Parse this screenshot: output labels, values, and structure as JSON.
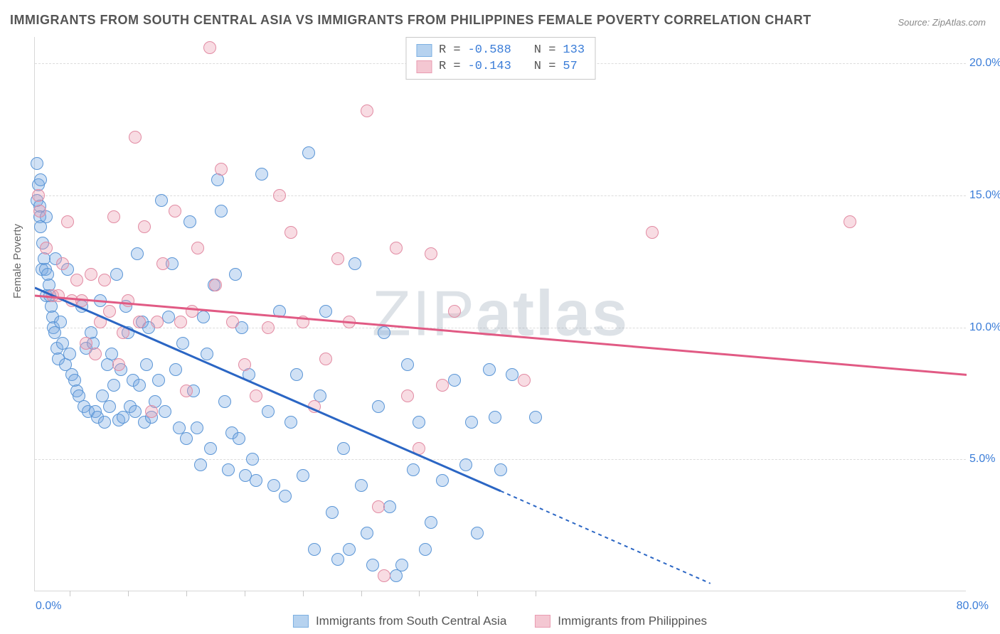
{
  "title": "IMMIGRANTS FROM SOUTH CENTRAL ASIA VS IMMIGRANTS FROM PHILIPPINES FEMALE POVERTY CORRELATION CHART",
  "source": "Source: ZipAtlas.com",
  "watermark_light": "ZIP",
  "watermark_bold": "atlas",
  "ylabel": "Female Poverty",
  "chart": {
    "type": "scatter",
    "xlim": [
      0,
      80
    ],
    "ylim": [
      0,
      21
    ],
    "yticks": [
      5,
      10,
      15,
      20
    ],
    "ytick_labels": [
      "5.0%",
      "10.0%",
      "15.0%",
      "20.0%"
    ],
    "x_left_label": "0.0%",
    "x_right_label": "80.0%",
    "xtick_positions": [
      3,
      8,
      13,
      18,
      23,
      28,
      33,
      38,
      43
    ],
    "background_color": "#ffffff",
    "grid_color": "#dcdcdc",
    "series": [
      {
        "name": "Immigrants from South Central Asia",
        "key": "south_central_asia",
        "fill": "rgba(120,170,225,0.35)",
        "stroke": "#5a95d6",
        "swatch_fill": "#b6d2ef",
        "swatch_border": "#7cb0e2",
        "line_color": "#2b66c4",
        "marker_radius": 9,
        "R": "-0.588",
        "N": "133",
        "trend": {
          "x1": 0,
          "y1": 11.5,
          "x2": 40,
          "y2": 3.8,
          "ext_x2": 58,
          "ext_y2": 0.3
        },
        "points": [
          [
            0.2,
            16.2
          ],
          [
            0.2,
            14.8
          ],
          [
            0.3,
            15.4
          ],
          [
            0.4,
            14.6
          ],
          [
            0.4,
            14.2
          ],
          [
            0.5,
            13.8
          ],
          [
            0.5,
            15.6
          ],
          [
            0.6,
            12.2
          ],
          [
            0.7,
            13.2
          ],
          [
            0.8,
            12.6
          ],
          [
            0.9,
            12.2
          ],
          [
            1.0,
            14.2
          ],
          [
            1.0,
            11.2
          ],
          [
            1.1,
            12.0
          ],
          [
            1.2,
            11.6
          ],
          [
            1.3,
            11.2
          ],
          [
            1.4,
            10.8
          ],
          [
            1.5,
            10.4
          ],
          [
            1.6,
            10.0
          ],
          [
            1.7,
            9.8
          ],
          [
            1.8,
            12.6
          ],
          [
            1.9,
            9.2
          ],
          [
            2.0,
            8.8
          ],
          [
            2.2,
            10.2
          ],
          [
            2.4,
            9.4
          ],
          [
            2.6,
            8.6
          ],
          [
            2.8,
            12.2
          ],
          [
            3.0,
            9.0
          ],
          [
            3.2,
            8.2
          ],
          [
            3.4,
            8.0
          ],
          [
            3.6,
            7.6
          ],
          [
            3.8,
            7.4
          ],
          [
            4.0,
            10.8
          ],
          [
            4.2,
            7.0
          ],
          [
            4.4,
            9.2
          ],
          [
            4.6,
            6.8
          ],
          [
            4.8,
            9.8
          ],
          [
            5.0,
            9.4
          ],
          [
            5.2,
            6.8
          ],
          [
            5.4,
            6.6
          ],
          [
            5.6,
            11.0
          ],
          [
            5.8,
            7.4
          ],
          [
            6.0,
            6.4
          ],
          [
            6.2,
            8.6
          ],
          [
            6.4,
            7.0
          ],
          [
            6.6,
            9.0
          ],
          [
            6.8,
            7.8
          ],
          [
            7.0,
            12.0
          ],
          [
            7.2,
            6.5
          ],
          [
            7.4,
            8.4
          ],
          [
            7.6,
            6.6
          ],
          [
            7.8,
            10.8
          ],
          [
            8.0,
            9.8
          ],
          [
            8.2,
            7.0
          ],
          [
            8.4,
            8.0
          ],
          [
            8.6,
            6.8
          ],
          [
            8.8,
            12.8
          ],
          [
            9.0,
            7.8
          ],
          [
            9.2,
            10.2
          ],
          [
            9.4,
            6.4
          ],
          [
            9.6,
            8.6
          ],
          [
            9.8,
            10.0
          ],
          [
            10.0,
            6.6
          ],
          [
            10.3,
            7.2
          ],
          [
            10.6,
            8.0
          ],
          [
            10.9,
            14.8
          ],
          [
            11.2,
            6.8
          ],
          [
            11.5,
            10.4
          ],
          [
            11.8,
            12.4
          ],
          [
            12.1,
            8.4
          ],
          [
            12.4,
            6.2
          ],
          [
            12.7,
            9.4
          ],
          [
            13.0,
            5.8
          ],
          [
            13.3,
            14.0
          ],
          [
            13.6,
            7.6
          ],
          [
            13.9,
            6.2
          ],
          [
            14.2,
            4.8
          ],
          [
            14.5,
            10.4
          ],
          [
            14.8,
            9.0
          ],
          [
            15.1,
            5.4
          ],
          [
            15.4,
            11.6
          ],
          [
            15.7,
            15.6
          ],
          [
            16.0,
            14.4
          ],
          [
            16.3,
            7.2
          ],
          [
            16.6,
            4.6
          ],
          [
            16.9,
            6.0
          ],
          [
            17.2,
            12.0
          ],
          [
            17.5,
            5.8
          ],
          [
            17.8,
            10.0
          ],
          [
            18.1,
            4.4
          ],
          [
            18.4,
            8.2
          ],
          [
            18.7,
            5.0
          ],
          [
            19.0,
            4.2
          ],
          [
            19.5,
            15.8
          ],
          [
            20.0,
            6.8
          ],
          [
            20.5,
            4.0
          ],
          [
            21.0,
            10.6
          ],
          [
            21.5,
            3.6
          ],
          [
            22.0,
            6.4
          ],
          [
            22.5,
            8.2
          ],
          [
            23.0,
            4.4
          ],
          [
            23.5,
            16.6
          ],
          [
            24.0,
            1.6
          ],
          [
            24.5,
            7.4
          ],
          [
            25.0,
            10.6
          ],
          [
            25.5,
            3.0
          ],
          [
            26.0,
            1.2
          ],
          [
            26.5,
            5.4
          ],
          [
            27.0,
            1.6
          ],
          [
            27.5,
            12.4
          ],
          [
            28.0,
            4.0
          ],
          [
            28.5,
            2.2
          ],
          [
            29.0,
            1.0
          ],
          [
            29.5,
            7.0
          ],
          [
            30.0,
            9.8
          ],
          [
            30.5,
            3.2
          ],
          [
            31.0,
            0.6
          ],
          [
            31.5,
            1.0
          ],
          [
            32.0,
            8.6
          ],
          [
            32.5,
            4.6
          ],
          [
            33.0,
            6.4
          ],
          [
            33.5,
            1.6
          ],
          [
            34.0,
            2.6
          ],
          [
            35.0,
            4.2
          ],
          [
            36.0,
            8.0
          ],
          [
            37.0,
            4.8
          ],
          [
            37.5,
            6.4
          ],
          [
            38.0,
            2.2
          ],
          [
            39.0,
            8.4
          ],
          [
            39.5,
            6.6
          ],
          [
            40.0,
            4.6
          ],
          [
            41.0,
            8.2
          ],
          [
            43.0,
            6.6
          ]
        ]
      },
      {
        "name": "Immigrants from Philippines",
        "key": "philippines",
        "fill": "rgba(235,155,175,0.35)",
        "stroke": "#e28ba3",
        "swatch_fill": "#f4c7d2",
        "swatch_border": "#e99cb2",
        "line_color": "#e15a84",
        "marker_radius": 9,
        "R": "-0.143",
        "N": "57",
        "trend": {
          "x1": 0,
          "y1": 11.2,
          "x2": 80,
          "y2": 8.2
        },
        "points": [
          [
            0.3,
            15.0
          ],
          [
            0.4,
            14.4
          ],
          [
            1.0,
            13.0
          ],
          [
            1.5,
            11.2
          ],
          [
            2.0,
            11.2
          ],
          [
            2.4,
            12.4
          ],
          [
            2.8,
            14.0
          ],
          [
            3.2,
            11.0
          ],
          [
            3.6,
            11.8
          ],
          [
            4.0,
            11.0
          ],
          [
            4.4,
            9.4
          ],
          [
            4.8,
            12.0
          ],
          [
            5.2,
            9.0
          ],
          [
            5.6,
            10.2
          ],
          [
            6.0,
            11.8
          ],
          [
            6.4,
            10.6
          ],
          [
            6.8,
            14.2
          ],
          [
            7.2,
            8.6
          ],
          [
            7.6,
            9.8
          ],
          [
            8.0,
            11.0
          ],
          [
            8.6,
            17.2
          ],
          [
            9.0,
            10.2
          ],
          [
            9.4,
            13.8
          ],
          [
            10.0,
            6.8
          ],
          [
            10.5,
            10.2
          ],
          [
            11.0,
            12.4
          ],
          [
            12.0,
            14.4
          ],
          [
            12.5,
            10.2
          ],
          [
            13.0,
            7.6
          ],
          [
            13.5,
            10.6
          ],
          [
            14.0,
            13.0
          ],
          [
            15.0,
            20.6
          ],
          [
            15.5,
            11.6
          ],
          [
            16.0,
            16.0
          ],
          [
            17.0,
            10.2
          ],
          [
            18.0,
            8.6
          ],
          [
            19.0,
            7.4
          ],
          [
            20.0,
            10.0
          ],
          [
            21.0,
            15.0
          ],
          [
            22.0,
            13.6
          ],
          [
            23.0,
            10.2
          ],
          [
            24.0,
            7.0
          ],
          [
            25.0,
            8.8
          ],
          [
            26.0,
            12.6
          ],
          [
            27.0,
            10.2
          ],
          [
            28.5,
            18.2
          ],
          [
            29.5,
            3.2
          ],
          [
            30.0,
            0.6
          ],
          [
            31.0,
            13.0
          ],
          [
            32.0,
            7.4
          ],
          [
            33.0,
            5.4
          ],
          [
            34.0,
            12.8
          ],
          [
            35.0,
            7.8
          ],
          [
            36.0,
            10.6
          ],
          [
            42.0,
            8.0
          ],
          [
            53.0,
            13.6
          ],
          [
            70.0,
            14.0
          ]
        ]
      }
    ],
    "legend": {
      "r_label": "R =",
      "n_label": "N ="
    }
  },
  "bottom_legend_items": [
    "Immigrants from South Central Asia",
    "Immigrants from Philippines"
  ]
}
